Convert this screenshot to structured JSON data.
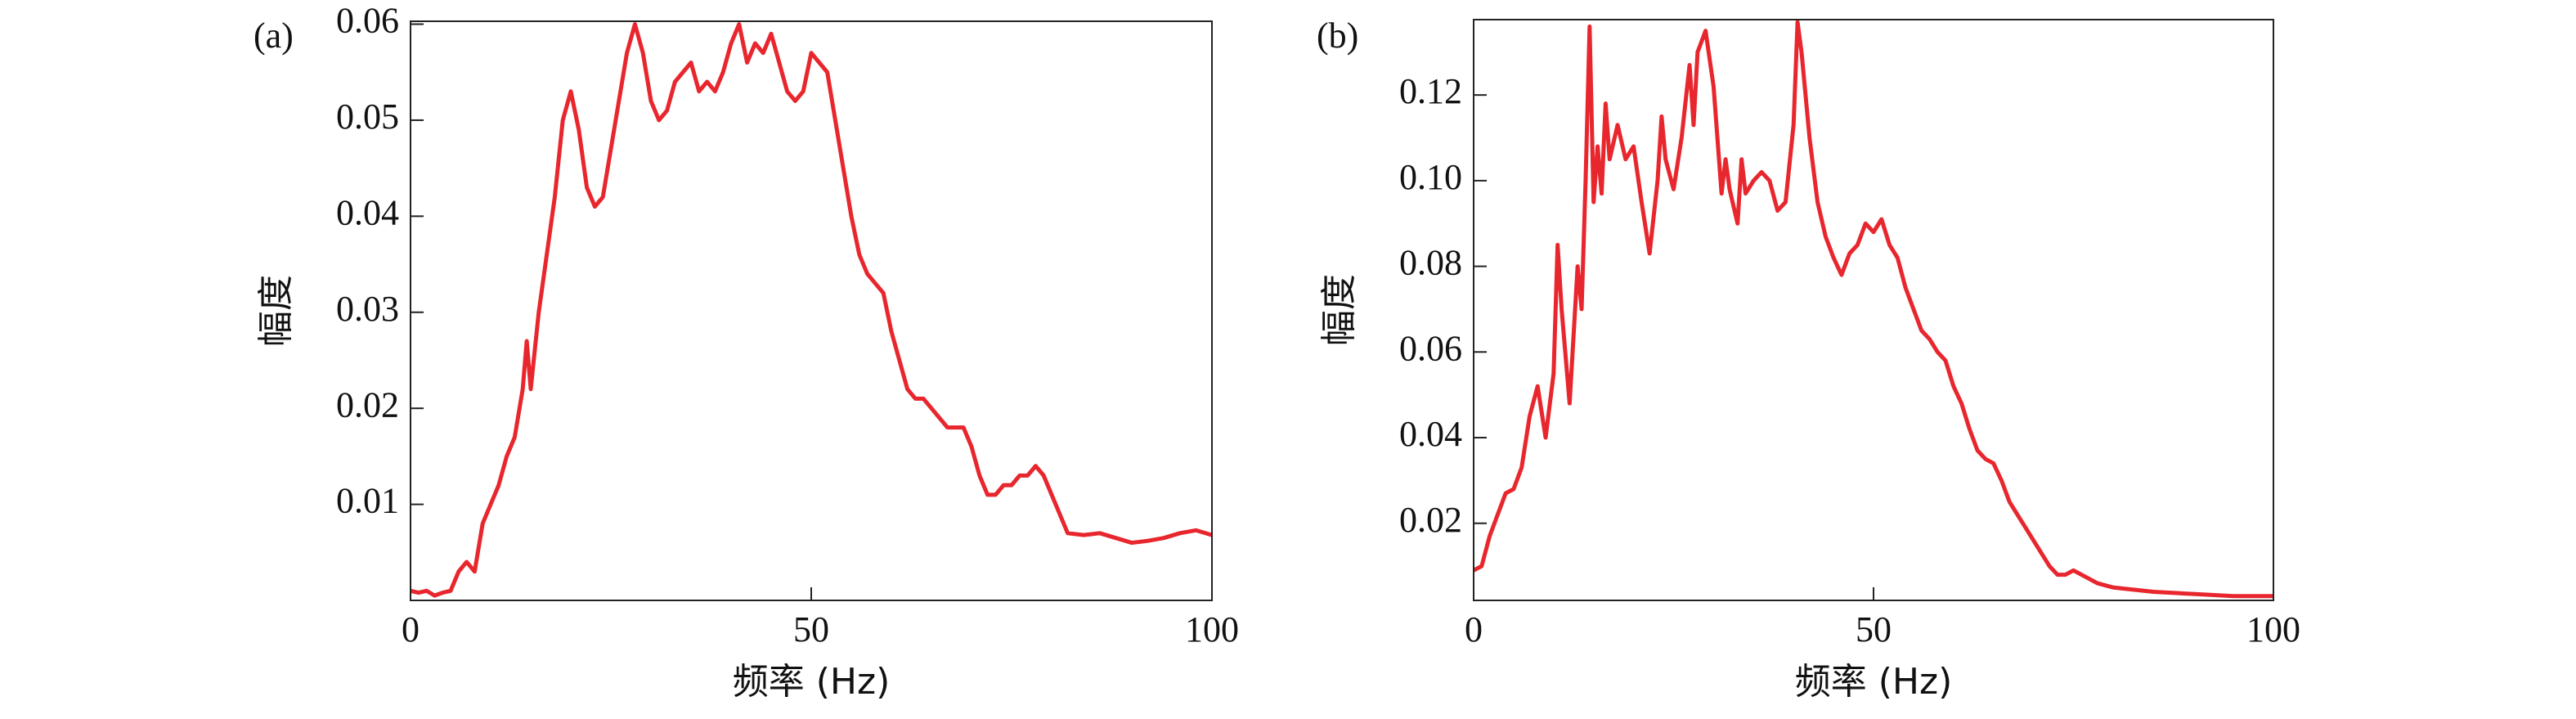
{
  "chart_data": [
    {
      "type": "line",
      "panel_label": "(a)",
      "xlabel": "频率 (Hz)",
      "ylabel": "幅度",
      "color": "#e8262d",
      "x": [
        0,
        1,
        2,
        3,
        4,
        5,
        6,
        7,
        8,
        9,
        10,
        11,
        12,
        13,
        14,
        14.5,
        15,
        16,
        17,
        18,
        19,
        20,
        21,
        22,
        23,
        24,
        25,
        26,
        27,
        28,
        29,
        30,
        31,
        32,
        33,
        34,
        35,
        36,
        37,
        38,
        39,
        40,
        41,
        42,
        43,
        44,
        45,
        46,
        47,
        48,
        49,
        50,
        51,
        52,
        53,
        54,
        55,
        56,
        57,
        58,
        59,
        60,
        61,
        62,
        63,
        64,
        65,
        66,
        67,
        68,
        69,
        70,
        71,
        72,
        73,
        74,
        75,
        76,
        77,
        78,
        79,
        80,
        81,
        82,
        84,
        86,
        88,
        90,
        92,
        94,
        96,
        98,
        100
      ],
      "values": [
        0.001,
        0.0008,
        0.001,
        0.0005,
        0.0008,
        0.001,
        0.003,
        0.004,
        0.003,
        0.008,
        0.01,
        0.012,
        0.015,
        0.017,
        0.022,
        0.027,
        0.022,
        0.03,
        0.036,
        0.042,
        0.05,
        0.053,
        0.049,
        0.043,
        0.041,
        0.042,
        0.047,
        0.052,
        0.057,
        0.06,
        0.057,
        0.052,
        0.05,
        0.051,
        0.054,
        0.055,
        0.056,
        0.053,
        0.054,
        0.053,
        0.055,
        0.058,
        0.06,
        0.056,
        0.058,
        0.057,
        0.059,
        0.056,
        0.053,
        0.052,
        0.053,
        0.057,
        0.056,
        0.055,
        0.05,
        0.045,
        0.04,
        0.036,
        0.034,
        0.033,
        0.032,
        0.028,
        0.025,
        0.022,
        0.021,
        0.021,
        0.02,
        0.019,
        0.018,
        0.018,
        0.018,
        0.016,
        0.013,
        0.011,
        0.011,
        0.012,
        0.012,
        0.013,
        0.013,
        0.014,
        0.013,
        0.011,
        0.009,
        0.007,
        0.0068,
        0.007,
        0.0065,
        0.006,
        0.0062,
        0.0065,
        0.007,
        0.0073,
        0.0068
      ],
      "xlim": [
        0,
        100
      ],
      "xticks": [
        0,
        50,
        100
      ],
      "ylim": [
        0,
        0.0603
      ],
      "yticks": [
        0.01,
        0.02,
        0.03,
        0.04,
        0.05,
        0.06
      ]
    },
    {
      "type": "line",
      "panel_label": "(b)",
      "xlabel": "频率 (Hz)",
      "ylabel": "幅度",
      "color": "#e8262d",
      "x": [
        0,
        1,
        2,
        3,
        4,
        5,
        6,
        7,
        8,
        9,
        10,
        10.5,
        11,
        12,
        13,
        13.5,
        14,
        14.5,
        15,
        15.5,
        16,
        16.5,
        17,
        18,
        19,
        20,
        21,
        22,
        23,
        23.5,
        24,
        25,
        26,
        27,
        27.5,
        28,
        29,
        30,
        31,
        31.5,
        32,
        33,
        33.5,
        34,
        35,
        36,
        37,
        38,
        39,
        40,
        40.5,
        41,
        42,
        43,
        44,
        45,
        46,
        47,
        48,
        49,
        50,
        51,
        52,
        53,
        54,
        55,
        56,
        57,
        58,
        59,
        60,
        61,
        62,
        63,
        64,
        65,
        66,
        67,
        68,
        69,
        70,
        71,
        72,
        73,
        74,
        75,
        76,
        77,
        78,
        80,
        85,
        90,
        95,
        100
      ],
      "values": [
        0.009,
        0.01,
        0.017,
        0.022,
        0.027,
        0.028,
        0.033,
        0.045,
        0.052,
        0.04,
        0.055,
        0.085,
        0.07,
        0.048,
        0.08,
        0.07,
        0.1,
        0.136,
        0.095,
        0.108,
        0.097,
        0.118,
        0.105,
        0.113,
        0.105,
        0.108,
        0.095,
        0.083,
        0.1,
        0.115,
        0.105,
        0.098,
        0.11,
        0.127,
        0.113,
        0.13,
        0.135,
        0.122,
        0.097,
        0.105,
        0.098,
        0.09,
        0.105,
        0.097,
        0.1,
        0.102,
        0.1,
        0.093,
        0.095,
        0.113,
        0.137,
        0.13,
        0.11,
        0.095,
        0.087,
        0.082,
        0.078,
        0.083,
        0.085,
        0.09,
        0.088,
        0.091,
        0.085,
        0.082,
        0.075,
        0.07,
        0.065,
        0.063,
        0.06,
        0.058,
        0.052,
        0.048,
        0.042,
        0.037,
        0.035,
        0.034,
        0.03,
        0.025,
        0.022,
        0.019,
        0.016,
        0.013,
        0.01,
        0.008,
        0.008,
        0.009,
        0.008,
        0.007,
        0.006,
        0.005,
        0.004,
        0.0035,
        0.003,
        0.003
      ],
      "xlim": [
        0,
        100
      ],
      "xticks": [
        0,
        50,
        100
      ],
      "ylim": [
        0.002,
        0.1376
      ],
      "yticks": [
        0.02,
        0.04,
        0.06,
        0.08,
        {
          "value": 0.1,
          "label": "0.10"
        },
        0.12
      ]
    }
  ]
}
